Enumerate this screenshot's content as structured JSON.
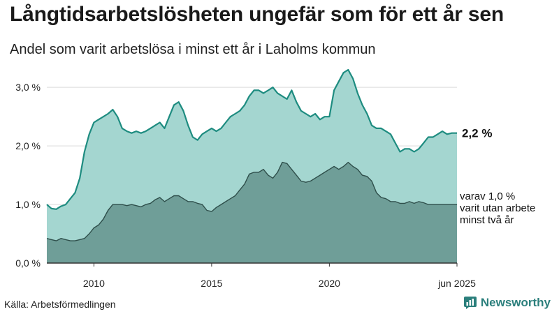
{
  "header": {
    "title": "Långtidsarbetslösheten ungefär som för ett år sen",
    "subtitle": "Andel som varit arbetslösa i minst ett år i Laholms kommun"
  },
  "footer": {
    "source": "Källa: Arbetsförmedlingen",
    "brand": "Newsworthy"
  },
  "colors": {
    "total_fill": "#a4d6d0",
    "total_line": "#1e8c80",
    "long_fill": "#6f9e98",
    "long_line": "#2f4f4b",
    "brand": "#2b7f7c"
  },
  "chart_data": {
    "type": "area",
    "x_unit": "year (decimal)",
    "xlim": [
      2008.0,
      2025.42
    ],
    "ylim": [
      0,
      3.3
    ],
    "y_ticks": [
      0,
      1.0,
      2.0,
      3.0
    ],
    "y_tick_labels": [
      "0,0 %",
      "1,0 %",
      "2,0 %",
      "3,0 %"
    ],
    "x_ticks": [
      2010,
      2015,
      2020,
      2025.42
    ],
    "x_tick_labels": [
      "2010",
      "2015",
      "2020",
      "jun 2025"
    ],
    "grid": true,
    "series": [
      {
        "label": "2,2 %",
        "x": [
          2008.0,
          2008.2,
          2008.4,
          2008.6,
          2008.8,
          2009.0,
          2009.2,
          2009.4,
          2009.6,
          2009.8,
          2010.0,
          2010.2,
          2010.4,
          2010.6,
          2010.8,
          2011.0,
          2011.2,
          2011.4,
          2011.6,
          2011.8,
          2012.0,
          2012.2,
          2012.4,
          2012.6,
          2012.8,
          2013.0,
          2013.2,
          2013.4,
          2013.6,
          2013.8,
          2014.0,
          2014.2,
          2014.4,
          2014.6,
          2014.8,
          2015.0,
          2015.2,
          2015.4,
          2015.6,
          2015.8,
          2016.0,
          2016.2,
          2016.4,
          2016.6,
          2016.8,
          2017.0,
          2017.2,
          2017.4,
          2017.6,
          2017.8,
          2018.0,
          2018.2,
          2018.4,
          2018.6,
          2018.8,
          2019.0,
          2019.2,
          2019.4,
          2019.6,
          2019.8,
          2020.0,
          2020.2,
          2020.4,
          2020.6,
          2020.8,
          2021.0,
          2021.2,
          2021.4,
          2021.6,
          2021.8,
          2022.0,
          2022.2,
          2022.4,
          2022.6,
          2022.8,
          2023.0,
          2023.2,
          2023.4,
          2023.6,
          2023.8,
          2024.0,
          2024.2,
          2024.4,
          2024.6,
          2024.8,
          2025.0,
          2025.2,
          2025.42
        ],
        "values": [
          1.0,
          0.93,
          0.92,
          0.97,
          1.0,
          1.1,
          1.2,
          1.45,
          1.9,
          2.2,
          2.4,
          2.45,
          2.5,
          2.55,
          2.62,
          2.5,
          2.3,
          2.25,
          2.22,
          2.25,
          2.22,
          2.25,
          2.3,
          2.35,
          2.4,
          2.3,
          2.5,
          2.7,
          2.75,
          2.6,
          2.35,
          2.15,
          2.1,
          2.2,
          2.25,
          2.3,
          2.25,
          2.3,
          2.4,
          2.5,
          2.55,
          2.6,
          2.7,
          2.85,
          2.95,
          2.95,
          2.9,
          2.95,
          3.0,
          2.9,
          2.85,
          2.8,
          2.95,
          2.75,
          2.6,
          2.55,
          2.5,
          2.55,
          2.45,
          2.5,
          2.5,
          2.95,
          3.1,
          3.25,
          3.3,
          3.15,
          2.9,
          2.7,
          2.55,
          2.35,
          2.3,
          2.3,
          2.25,
          2.2,
          2.05,
          1.9,
          1.95,
          1.95,
          1.9,
          1.95,
          2.05,
          2.15,
          2.15,
          2.2,
          2.25,
          2.2,
          2.22,
          2.22
        ]
      },
      {
        "label": "varav 1,0 %",
        "label_lines": [
          "varav 1,0 %",
          "varit utan arbete",
          "minst två år"
        ],
        "x": [
          2008.0,
          2008.2,
          2008.4,
          2008.6,
          2008.8,
          2009.0,
          2009.2,
          2009.4,
          2009.6,
          2009.8,
          2010.0,
          2010.2,
          2010.4,
          2010.6,
          2010.8,
          2011.0,
          2011.2,
          2011.4,
          2011.6,
          2011.8,
          2012.0,
          2012.2,
          2012.4,
          2012.6,
          2012.8,
          2013.0,
          2013.2,
          2013.4,
          2013.6,
          2013.8,
          2014.0,
          2014.2,
          2014.4,
          2014.6,
          2014.8,
          2015.0,
          2015.2,
          2015.4,
          2015.6,
          2015.8,
          2016.0,
          2016.2,
          2016.4,
          2016.6,
          2016.8,
          2017.0,
          2017.2,
          2017.4,
          2017.6,
          2017.8,
          2018.0,
          2018.2,
          2018.4,
          2018.6,
          2018.8,
          2019.0,
          2019.2,
          2019.4,
          2019.6,
          2019.8,
          2020.0,
          2020.2,
          2020.4,
          2020.6,
          2020.8,
          2021.0,
          2021.2,
          2021.4,
          2021.6,
          2021.8,
          2022.0,
          2022.2,
          2022.4,
          2022.6,
          2022.8,
          2023.0,
          2023.2,
          2023.4,
          2023.6,
          2023.8,
          2024.0,
          2024.2,
          2024.4,
          2024.6,
          2024.8,
          2025.0,
          2025.2,
          2025.42
        ],
        "values": [
          0.42,
          0.4,
          0.38,
          0.42,
          0.4,
          0.38,
          0.38,
          0.4,
          0.42,
          0.5,
          0.6,
          0.65,
          0.75,
          0.9,
          1.0,
          1.0,
          1.0,
          0.98,
          1.0,
          0.98,
          0.96,
          1.0,
          1.02,
          1.08,
          1.12,
          1.05,
          1.1,
          1.15,
          1.15,
          1.1,
          1.05,
          1.05,
          1.02,
          1.0,
          0.9,
          0.88,
          0.95,
          1.0,
          1.05,
          1.1,
          1.15,
          1.25,
          1.35,
          1.52,
          1.55,
          1.55,
          1.6,
          1.5,
          1.45,
          1.55,
          1.72,
          1.7,
          1.6,
          1.5,
          1.4,
          1.38,
          1.4,
          1.45,
          1.5,
          1.55,
          1.6,
          1.65,
          1.6,
          1.65,
          1.72,
          1.65,
          1.6,
          1.5,
          1.48,
          1.4,
          1.2,
          1.12,
          1.1,
          1.05,
          1.05,
          1.02,
          1.02,
          1.05,
          1.02,
          1.05,
          1.03,
          1.0,
          1.0,
          1.0,
          1.0,
          1.0,
          1.0,
          1.0
        ]
      }
    ]
  }
}
